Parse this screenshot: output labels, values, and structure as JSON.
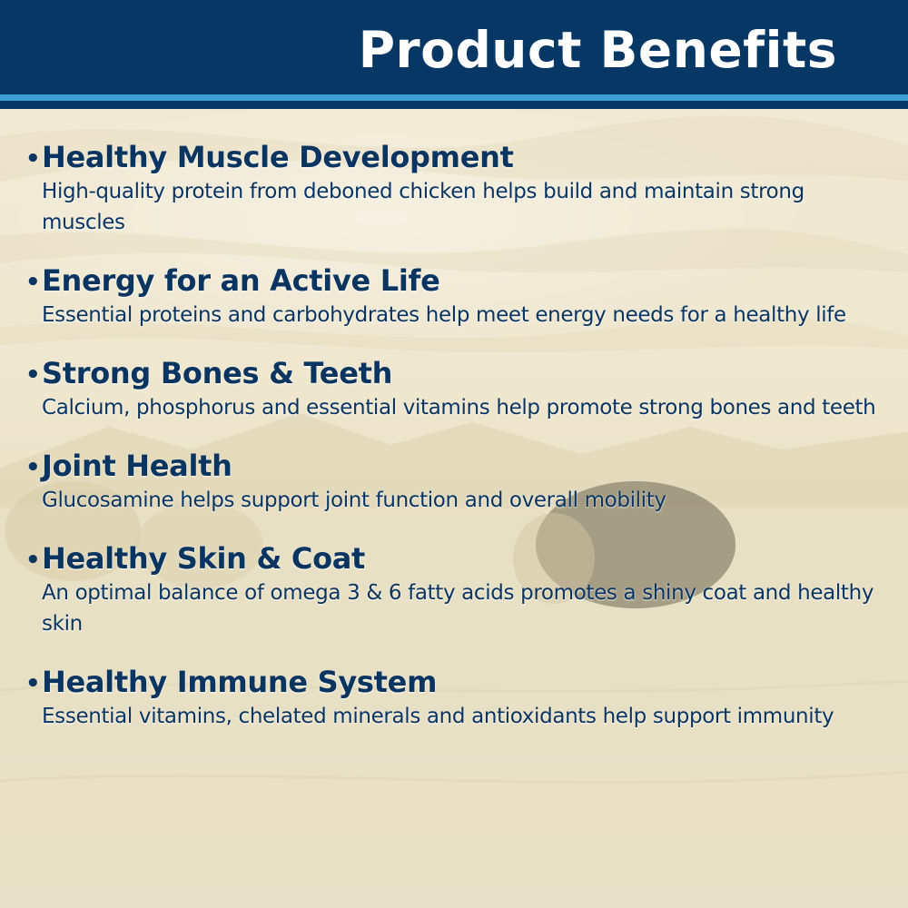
{
  "header": {
    "title": "Product Benefits"
  },
  "colors": {
    "header_bg": "#073764",
    "header_stripe": "#3d9fd4",
    "text": "#0b3561",
    "background": "#efe8d4"
  },
  "benefits": [
    {
      "bullet": "•",
      "title": "Healthy Muscle Development",
      "description": "High-quality protein from deboned chicken helps build and maintain strong muscles"
    },
    {
      "bullet": "•",
      "title": "Energy for an Active Life",
      "description": "Essential proteins and carbohydrates help meet energy needs for a healthy life"
    },
    {
      "bullet": "•",
      "title": "Strong Bones & Teeth",
      "description": "Calcium, phosphorus and essential vitamins help promote strong bones and teeth"
    },
    {
      "bullet": "•",
      "title": "Joint Health",
      "description": "Glucosamine helps support joint function and overall mobility"
    },
    {
      "bullet": "•",
      "title": "Healthy Skin & Coat",
      "description": "An optimal balance of omega 3 & 6 fatty acids promotes a shiny coat and healthy skin"
    },
    {
      "bullet": "•",
      "title": "Healthy Immune System",
      "description": "Essential vitamins, chelated minerals and antioxidants help support immunity"
    }
  ]
}
